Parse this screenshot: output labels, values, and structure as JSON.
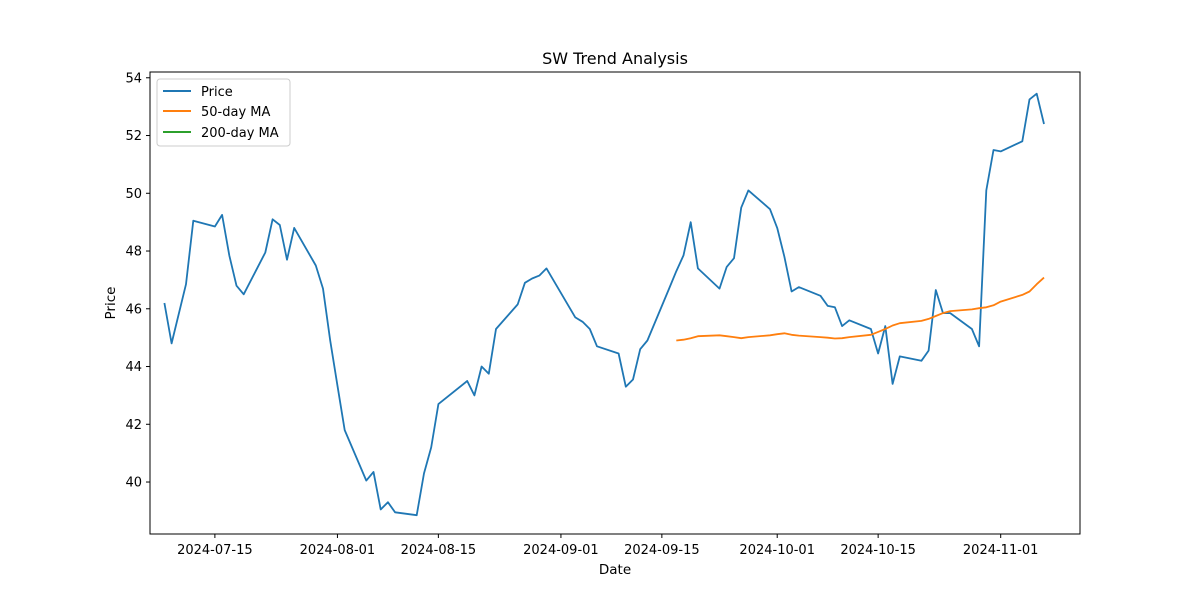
{
  "chart_data": {
    "type": "line",
    "title": "SW Trend Analysis",
    "xlabel": "Date",
    "ylabel": "Price",
    "xlim": [
      "2024-07-06",
      "2024-11-12"
    ],
    "ylim": [
      38.2,
      54.2
    ],
    "x_ticks": [
      "2024-07-15",
      "2024-08-01",
      "2024-08-15",
      "2024-09-01",
      "2024-09-15",
      "2024-10-01",
      "2024-10-15",
      "2024-11-01"
    ],
    "y_ticks": [
      40,
      42,
      44,
      46,
      48,
      50,
      52,
      54
    ],
    "legend_position": "top-left",
    "grid": false,
    "series": [
      {
        "name": "Price",
        "color": "#1f77b4",
        "x": [
          "2024-07-08",
          "2024-07-09",
          "2024-07-11",
          "2024-07-12",
          "2024-07-15",
          "2024-07-16",
          "2024-07-17",
          "2024-07-18",
          "2024-07-19",
          "2024-07-22",
          "2024-07-23",
          "2024-07-24",
          "2024-07-25",
          "2024-07-26",
          "2024-07-29",
          "2024-07-30",
          "2024-07-31",
          "2024-08-01",
          "2024-08-02",
          "2024-08-05",
          "2024-08-06",
          "2024-08-07",
          "2024-08-08",
          "2024-08-09",
          "2024-08-12",
          "2024-08-13",
          "2024-08-14",
          "2024-08-15",
          "2024-08-19",
          "2024-08-20",
          "2024-08-21",
          "2024-08-22",
          "2024-08-23",
          "2024-08-26",
          "2024-08-27",
          "2024-08-28",
          "2024-08-29",
          "2024-08-30",
          "2024-09-03",
          "2024-09-04",
          "2024-09-05",
          "2024-09-06",
          "2024-09-09",
          "2024-09-10",
          "2024-09-11",
          "2024-09-12",
          "2024-09-13",
          "2024-09-16",
          "2024-09-17",
          "2024-09-18",
          "2024-09-19",
          "2024-09-20",
          "2024-09-23",
          "2024-09-24",
          "2024-09-25",
          "2024-09-26",
          "2024-09-27",
          "2024-09-30",
          "2024-10-01",
          "2024-10-02",
          "2024-10-03",
          "2024-10-04",
          "2024-10-07",
          "2024-10-08",
          "2024-10-09",
          "2024-10-10",
          "2024-10-11",
          "2024-10-14",
          "2024-10-15",
          "2024-10-16",
          "2024-10-17",
          "2024-10-18",
          "2024-10-21",
          "2024-10-22",
          "2024-10-23",
          "2024-10-24",
          "2024-10-25",
          "2024-10-28",
          "2024-10-29",
          "2024-10-30",
          "2024-10-31",
          "2024-11-01",
          "2024-11-04",
          "2024-11-05",
          "2024-11-06",
          "2024-11-07"
        ],
        "values": [
          46.2,
          44.8,
          46.85,
          49.05,
          48.85,
          49.25,
          47.85,
          46.8,
          46.5,
          47.95,
          49.1,
          48.9,
          47.7,
          48.8,
          47.5,
          46.7,
          44.9,
          43.35,
          41.8,
          40.05,
          40.35,
          39.05,
          39.3,
          38.95,
          38.85,
          40.3,
          41.2,
          42.7,
          43.5,
          43.0,
          44.0,
          43.75,
          45.3,
          46.15,
          46.9,
          47.05,
          47.15,
          47.4,
          45.7,
          45.55,
          45.3,
          44.7,
          44.45,
          43.3,
          43.55,
          44.6,
          44.9,
          46.7,
          47.3,
          47.85,
          49.0,
          47.4,
          46.7,
          47.45,
          47.75,
          49.5,
          50.1,
          49.45,
          48.8,
          47.8,
          46.6,
          46.75,
          46.45,
          46.1,
          46.05,
          45.4,
          45.6,
          45.3,
          44.45,
          45.4,
          43.4,
          44.35,
          44.2,
          44.55,
          46.65,
          45.85,
          45.85,
          45.3,
          44.7,
          50.1,
          51.5,
          51.45,
          51.8,
          53.25,
          53.45,
          52.4
        ]
      },
      {
        "name": "50-day MA",
        "color": "#ff7f0e",
        "x": [
          "2024-09-17",
          "2024-09-18",
          "2024-09-19",
          "2024-09-20",
          "2024-09-23",
          "2024-09-24",
          "2024-09-25",
          "2024-09-26",
          "2024-09-27",
          "2024-09-30",
          "2024-10-01",
          "2024-10-02",
          "2024-10-03",
          "2024-10-04",
          "2024-10-07",
          "2024-10-08",
          "2024-10-09",
          "2024-10-10",
          "2024-10-11",
          "2024-10-14",
          "2024-10-15",
          "2024-10-16",
          "2024-10-17",
          "2024-10-18",
          "2024-10-21",
          "2024-10-22",
          "2024-10-23",
          "2024-10-24",
          "2024-10-25",
          "2024-10-28",
          "2024-10-29",
          "2024-10-30",
          "2024-10-31",
          "2024-11-01",
          "2024-11-04",
          "2024-11-05",
          "2024-11-06",
          "2024-11-07"
        ],
        "values": [
          44.9,
          44.93,
          44.98,
          45.05,
          45.08,
          45.05,
          45.02,
          44.98,
          45.02,
          45.08,
          45.12,
          45.15,
          45.1,
          45.07,
          45.02,
          45.0,
          44.97,
          44.98,
          45.02,
          45.1,
          45.2,
          45.3,
          45.42,
          45.5,
          45.58,
          45.65,
          45.75,
          45.85,
          45.92,
          45.98,
          46.02,
          46.05,
          46.12,
          46.25,
          46.48,
          46.6,
          46.85,
          47.08
        ]
      },
      {
        "name": "200-day MA",
        "color": "#2ca02c",
        "x": [],
        "values": []
      }
    ]
  }
}
